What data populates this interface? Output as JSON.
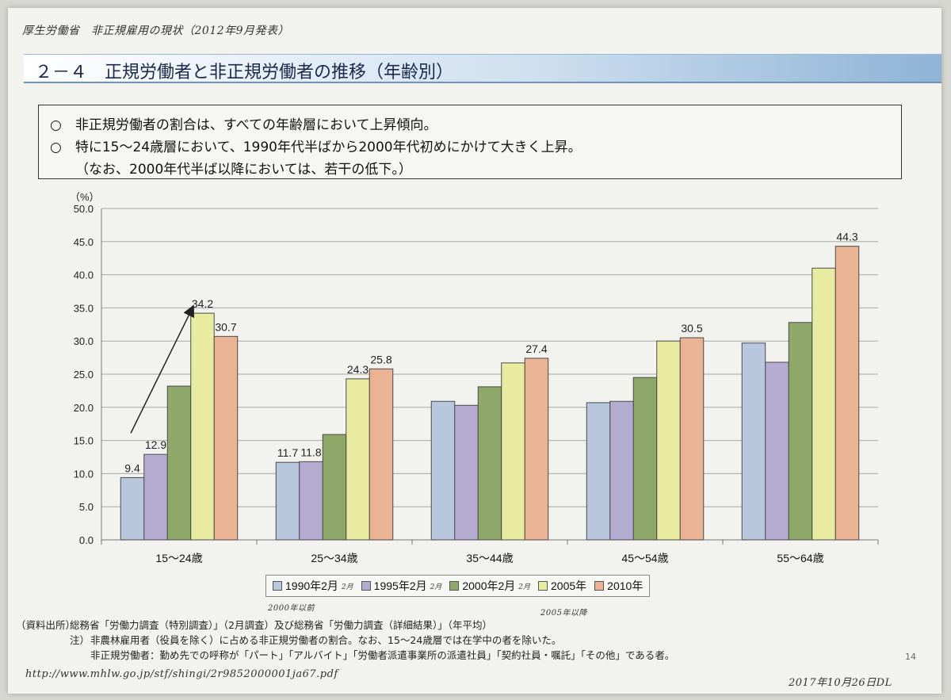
{
  "header": {
    "handwritten_source": "厚生労働省　非正規雇用の現状（2012年9月発表）",
    "title": "２－４　正規労働者と非正規労働者の推移（年齢別）"
  },
  "summary": {
    "line1": "○　非正規労働者の割合は、すべての年齢層において上昇傾向。",
    "line2": "○　特に15～24歳層において、1990年代半ばから2000年代初めにかけて大きく上昇。",
    "line3": "（なお、2000年代半ば以降においては、若干の低下。）"
  },
  "chart_data": {
    "type": "bar",
    "ylabel": "（%）",
    "ylim": [
      0,
      50
    ],
    "yticks": [
      "0.0",
      "5.0",
      "10.0",
      "15.0",
      "20.0",
      "25.0",
      "30.0",
      "35.0",
      "40.0",
      "45.0",
      "50.0"
    ],
    "categories": [
      "15～24歳",
      "25～34歳",
      "35～44歳",
      "45～54歳",
      "55～64歳"
    ],
    "series": [
      {
        "name": "1990年2月",
        "color": "#b8c7de",
        "values": [
          9.4,
          11.7,
          20.9,
          20.7,
          29.7
        ]
      },
      {
        "name": "1995年2月",
        "color": "#b3abd0",
        "values": [
          12.9,
          11.8,
          20.3,
          20.9,
          26.8
        ]
      },
      {
        "name": "2000年2月",
        "color": "#8ea86a",
        "values": [
          23.2,
          15.9,
          23.1,
          24.5,
          32.8
        ]
      },
      {
        "name": "2005年",
        "color": "#e8eca0",
        "values": [
          34.2,
          24.3,
          26.7,
          30.0,
          41.0
        ]
      },
      {
        "name": "2010年",
        "color": "#eab394",
        "values": [
          30.7,
          25.8,
          27.4,
          30.5,
          44.3
        ]
      }
    ],
    "data_labels": [
      {
        "series": 0,
        "category": 0,
        "text": "9.4"
      },
      {
        "series": 1,
        "category": 0,
        "text": "12.9"
      },
      {
        "series": 3,
        "category": 0,
        "text": "34.2"
      },
      {
        "series": 4,
        "category": 0,
        "text": "30.7"
      },
      {
        "series": 0,
        "category": 1,
        "text": "11.7"
      },
      {
        "series": 1,
        "category": 1,
        "text": "11.8"
      },
      {
        "series": 3,
        "category": 1,
        "text": "24.3"
      },
      {
        "series": 4,
        "category": 1,
        "text": "25.8"
      },
      {
        "series": 4,
        "category": 2,
        "text": "27.4"
      },
      {
        "series": 4,
        "category": 3,
        "text": "30.5"
      },
      {
        "series": 4,
        "category": 4,
        "text": "44.3"
      }
    ],
    "legend_suffix_marks": [
      "2月",
      "2月",
      "2月",
      "",
      ""
    ],
    "arrow_annotation": {
      "from_series": 0,
      "from_category": 0,
      "to_series": 3,
      "to_category": 0
    },
    "grid": true,
    "legend_position": "bottom"
  },
  "handwritten_under_legend": {
    "left": "2000年以前",
    "right": "2005年以降"
  },
  "footer": {
    "source_label": "（資料出所）",
    "source_text": "総務省「労働力調査（特別調査）」（2月調査）及び総務省「労働力調査（詳細結果）」（年平均）",
    "note_label": "注）",
    "note1": "非農林雇用者（役員を除く）に占める非正規労働者の割合。なお、15～24歳層では在学中の者を除いた。",
    "note2": "非正規労働者：勤め先での呼称が「パート」「アルバイト」「労働者派遣事業所の派遣社員」「契約社員・嘱託」「その他」である者。",
    "page_number": "14",
    "handwritten_url": "http://www.mhlw.go.jp/stf/shingi/2r9852000001ja67.pdf",
    "handwritten_date": "2017年10月26日DL"
  }
}
